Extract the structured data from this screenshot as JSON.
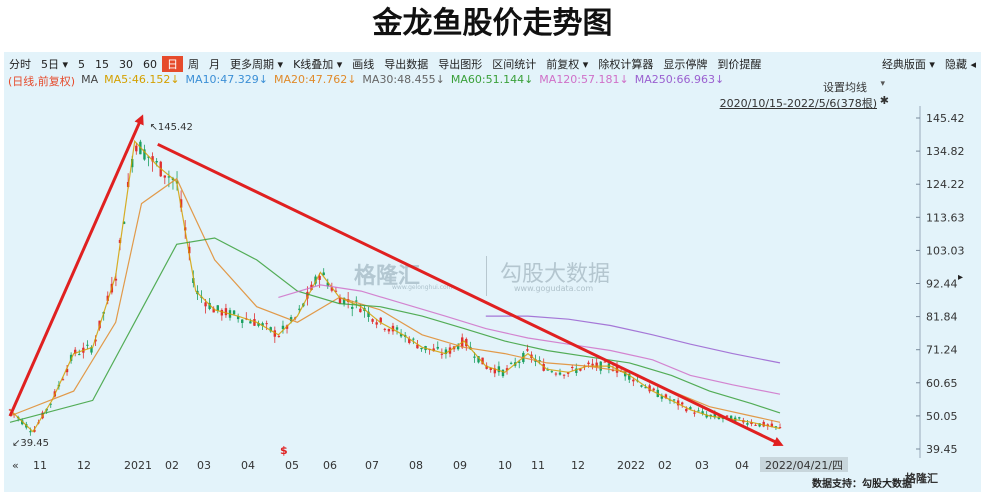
{
  "title": "金龙鱼股价走势图",
  "toolbar": {
    "items": [
      "分时",
      "5日 ▾",
      "5",
      "15",
      "30",
      "60",
      "日",
      "周",
      "月",
      "更多周期 ▾",
      "K线叠加 ▾",
      "画线",
      "导出数据",
      "导出图形",
      "区间统计",
      "前复权 ▾",
      "除权计算器",
      "显示停牌",
      "到价提醒"
    ],
    "active_index": 6,
    "right_items": [
      "经典版面 ▾",
      "隐藏 ◂"
    ]
  },
  "ma": {
    "label": "(日线,前复权)",
    "prefix": "MA",
    "items": [
      {
        "text": "MA5:46.152↓",
        "color": "#d4a000"
      },
      {
        "text": "MA10:47.329↓",
        "color": "#3b8fd6"
      },
      {
        "text": "MA20:47.762↓",
        "color": "#e08a2a"
      },
      {
        "text": "MA30:48.455↓",
        "color": "#666666"
      },
      {
        "text": "MA60:51.144↓",
        "color": "#3aa03a"
      },
      {
        "text": "MA120:57.181↓",
        "color": "#d070c8"
      },
      {
        "text": "MA250:66.963↓",
        "color": "#9a60d0"
      }
    ],
    "label_color": "#e64b2c"
  },
  "avg_setting": "设置均线",
  "avg_setting_arrow": "▾",
  "range_label": "2020/10/15-2022/5/6(378根)",
  "pin_icon": "✱",
  "watermark_1": "格隆汇",
  "watermark_1_sub": "www.gelonghui.com",
  "watermark_2": "勾股大数据",
  "watermark_2_sub": "www.gogudata.com",
  "footer_source": "数据支持：勾股大数据",
  "footer_logo": "格隆汇",
  "right_arrow": "▸",
  "chart_data": {
    "type": "line",
    "ylim": [
      39.45,
      145.42
    ],
    "yticks": [
      145.42,
      134.82,
      124.22,
      113.63,
      103.03,
      92.44,
      81.84,
      71.24,
      60.65,
      50.05,
      39.45
    ],
    "xticks": [
      "11",
      "12",
      "2021",
      "02",
      "03",
      "04",
      "05",
      "06",
      "07",
      "08",
      "09",
      "10",
      "11",
      "12",
      "2022",
      "02",
      "03",
      "04"
    ],
    "x_nav_left": "«",
    "cursor_date": "2022/04/21/四",
    "annotations": {
      "high": "145.42",
      "low": "39.45",
      "high_marker": "↖",
      "low_marker": "↙",
      "event_marker": "$"
    },
    "series": [
      {
        "name": "MA5",
        "color": "#d4a000",
        "x": [
          "2020-10-15",
          "2020-11-01",
          "2020-11-15",
          "2020-12-01",
          "2020-12-15",
          "2021-01-01",
          "2021-01-15",
          "2021-02-01",
          "2021-02-15",
          "2021-03-01",
          "2021-03-15",
          "2021-04-01",
          "2021-04-15",
          "2021-05-01",
          "2021-05-15",
          "2021-06-01",
          "2021-06-15",
          "2021-07-01",
          "2021-07-15",
          "2021-08-01",
          "2021-08-15",
          "2021-09-01",
          "2021-09-15",
          "2021-10-01",
          "2021-10-15",
          "2021-11-01",
          "2021-11-15",
          "2021-12-01",
          "2021-12-15",
          "2022-01-01",
          "2022-01-15",
          "2022-02-01",
          "2022-02-15",
          "2022-03-01",
          "2022-03-15",
          "2022-04-01",
          "2022-04-15",
          "2022-05-06"
        ],
        "values": [
          52,
          45,
          55,
          70,
          72,
          95,
          138,
          130,
          125,
          90,
          84,
          82,
          80,
          76,
          82,
          96,
          88,
          85,
          80,
          76,
          72,
          70,
          74,
          66,
          64,
          70,
          65,
          64,
          66,
          66,
          63,
          58,
          55,
          52,
          50,
          49,
          48,
          46
        ]
      },
      {
        "name": "MA20",
        "color": "#e08a2a",
        "x": [
          "2020-10-15",
          "2020-12-01",
          "2021-01-01",
          "2021-01-20",
          "2021-02-15",
          "2021-03-15",
          "2021-04-15",
          "2021-05-15",
          "2021-06-15",
          "2021-07-15",
          "2021-08-15",
          "2021-09-15",
          "2021-10-15",
          "2021-11-15",
          "2021-12-15",
          "2022-01-15",
          "2022-02-15",
          "2022-03-15",
          "2022-04-15",
          "2022-05-06"
        ],
        "values": [
          50,
          58,
          80,
          118,
          126,
          100,
          85,
          80,
          88,
          84,
          76,
          72,
          70,
          67,
          66,
          64,
          58,
          53,
          50,
          48
        ]
      },
      {
        "name": "MA60",
        "color": "#3aa03a",
        "x": [
          "2020-10-15",
          "2020-12-15",
          "2021-01-15",
          "2021-02-15",
          "2021-03-15",
          "2021-04-15",
          "2021-05-15",
          "2021-06-15",
          "2021-07-15",
          "2021-08-15",
          "2021-09-15",
          "2021-10-15",
          "2021-11-15",
          "2021-12-15",
          "2022-01-15",
          "2022-02-15",
          "2022-03-15",
          "2022-04-15",
          "2022-05-06"
        ],
        "values": [
          48,
          55,
          80,
          105,
          107,
          100,
          90,
          86,
          85,
          82,
          78,
          74,
          71,
          69,
          67,
          63,
          58,
          54,
          51
        ]
      },
      {
        "name": "MA120",
        "color": "#d070c8",
        "x": [
          "2021-05-01",
          "2021-06-01",
          "2021-07-01",
          "2021-08-01",
          "2021-09-01",
          "2021-10-01",
          "2021-11-01",
          "2021-12-01",
          "2022-01-01",
          "2022-02-01",
          "2022-03-01",
          "2022-04-01",
          "2022-05-06"
        ],
        "values": [
          88,
          92,
          90,
          86,
          82,
          78,
          75,
          73,
          71,
          68,
          63,
          60,
          57
        ]
      },
      {
        "name": "MA250",
        "color": "#9a60d0",
        "x": [
          "2021-10-01",
          "2021-11-01",
          "2021-12-01",
          "2022-01-01",
          "2022-02-01",
          "2022-03-01",
          "2022-04-01",
          "2022-05-06"
        ],
        "values": [
          82,
          82,
          81,
          79,
          76,
          73,
          70,
          67
        ]
      }
    ],
    "trend_arrows": [
      {
        "from": [
          "2020-10-15",
          50
        ],
        "to": [
          "2021-01-20",
          145.42
        ],
        "color": "#e02020"
      },
      {
        "from": [
          "2021-02-01",
          137
        ],
        "to": [
          "2022-05-06",
          41
        ],
        "color": "#e02020"
      }
    ]
  }
}
